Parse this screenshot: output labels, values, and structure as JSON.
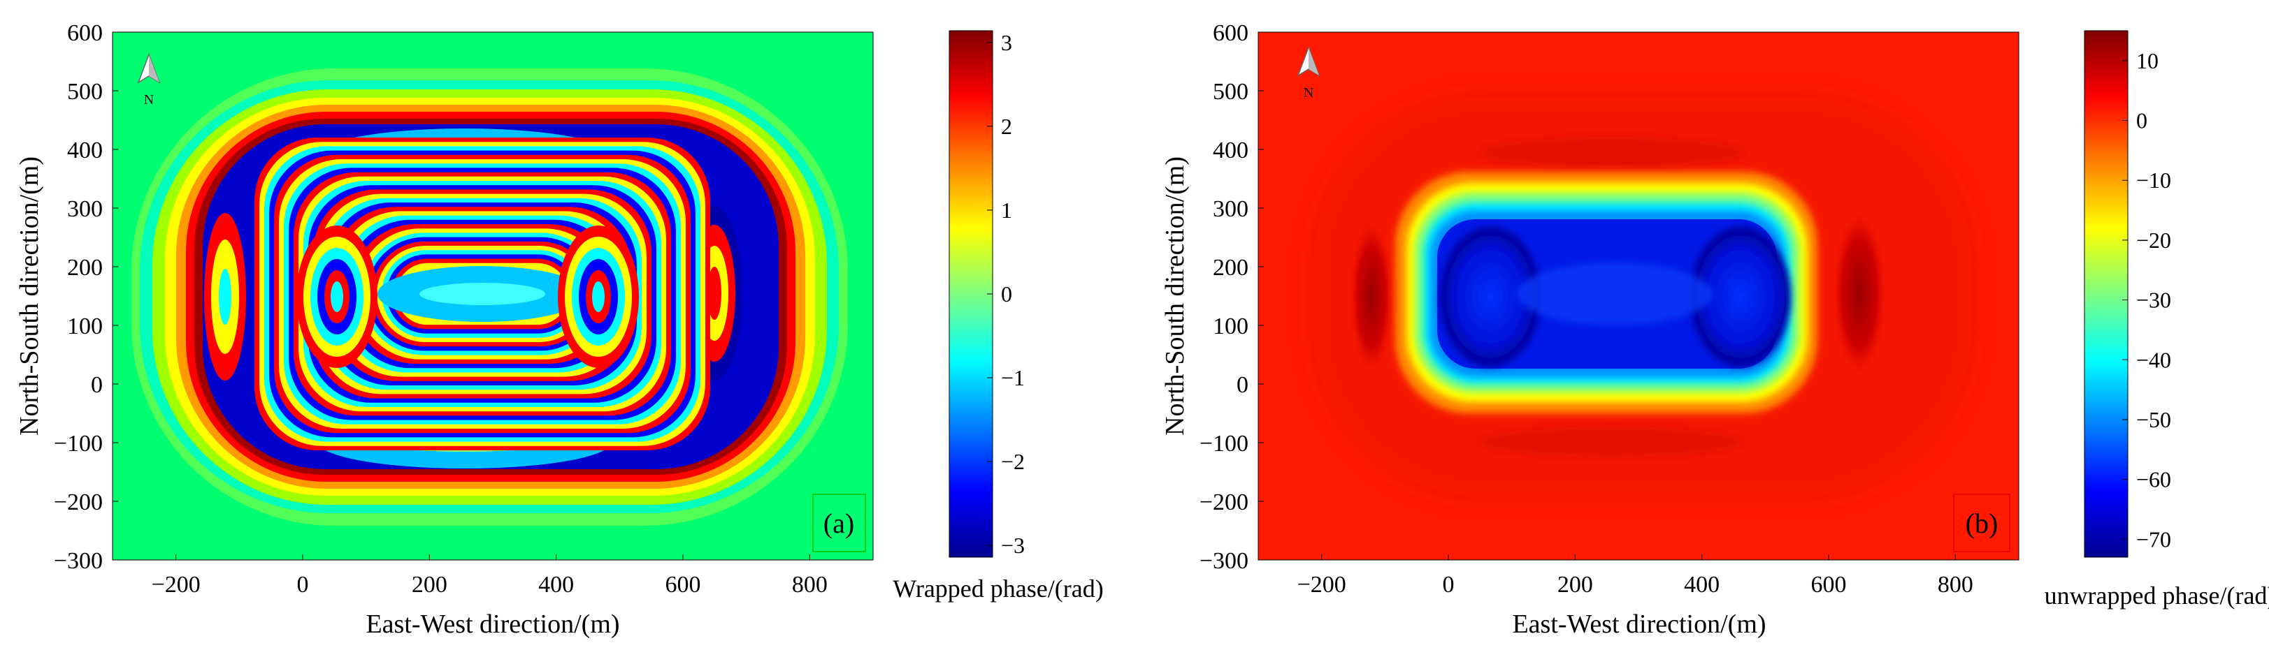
{
  "chart_data": [
    {
      "type": "heatmap",
      "panel_label": "(a)",
      "xlabel": "East-West direction/(m)",
      "ylabel": "North-South direction/(m)",
      "xlim": [
        -300,
        900
      ],
      "ylim": [
        -300,
        600
      ],
      "xticks": [
        -200,
        0,
        200,
        400,
        600,
        800
      ],
      "yticks": [
        -300,
        -200,
        -100,
        0,
        100,
        200,
        300,
        400,
        500,
        600
      ],
      "north_arrow_label": "N",
      "colorbar": {
        "label": "Wrapped phase/(rad)",
        "range": [
          -3.14,
          3.14
        ],
        "ticks": [
          -3,
          -2,
          -1,
          0,
          1,
          2,
          3
        ]
      }
    },
    {
      "type": "heatmap",
      "panel_label": "(b)",
      "xlabel": "East-West direction/(m)",
      "ylabel": "North-South direction/(m)",
      "xlim": [
        -300,
        900
      ],
      "ylim": [
        -300,
        600
      ],
      "xticks": [
        -200,
        0,
        200,
        400,
        600,
        800
      ],
      "yticks": [
        -300,
        -200,
        -100,
        0,
        100,
        200,
        300,
        400,
        500,
        600
      ],
      "north_arrow_label": "N",
      "colorbar": {
        "label": "unwrapped phase/(rad)",
        "range": [
          -73,
          15
        ],
        "ticks": [
          -70,
          -60,
          -50,
          -40,
          -30,
          -20,
          -10,
          0,
          10
        ]
      }
    }
  ],
  "colors": {
    "jet_dark_blue": "#00008f",
    "jet_blue": "#0000ff",
    "jet_cyan": "#00ffff",
    "jet_yellow": "#ffff00",
    "jet_red": "#ff0000",
    "jet_dark_red": "#800000",
    "panel_a_background": "#00ff70",
    "panel_b_background": "#ff1a00"
  }
}
